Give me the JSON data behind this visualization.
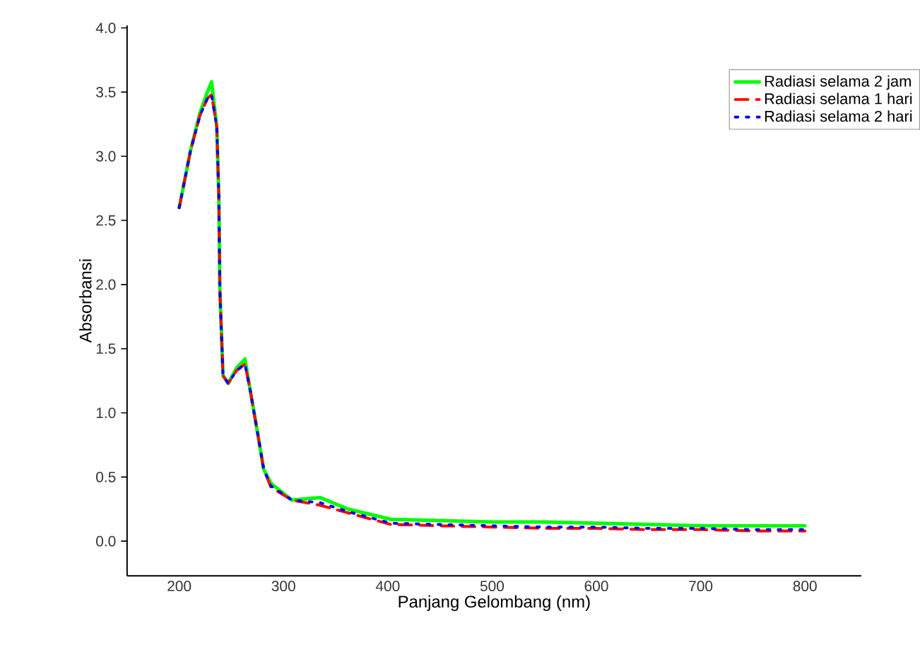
{
  "chart_data": {
    "type": "line",
    "xlabel": "Panjang Gelombang (nm)",
    "ylabel": "Absorbansi",
    "x": [
      200,
      211,
      220,
      227,
      231,
      236,
      238,
      239,
      242,
      247,
      255,
      263,
      268,
      275,
      281,
      288,
      308,
      335,
      362,
      403,
      450,
      500,
      550,
      600,
      650,
      700,
      750,
      800
    ],
    "series": [
      {
        "name": "Radiasi selama 2 jam",
        "color": "#00ff00",
        "line_style": "solid",
        "values": [
          2.6,
          3.05,
          3.34,
          3.5,
          3.58,
          3.23,
          2.68,
          1.95,
          1.29,
          1.23,
          1.35,
          1.42,
          1.18,
          0.85,
          0.56,
          0.45,
          0.32,
          0.34,
          0.25,
          0.17,
          0.16,
          0.15,
          0.15,
          0.14,
          0.13,
          0.12,
          0.12,
          0.12
        ]
      },
      {
        "name": "Radiasi selama 1 hari",
        "color": "#ff0000",
        "line_style": "dashed",
        "values": [
          2.6,
          3.05,
          3.32,
          3.45,
          3.48,
          3.23,
          2.68,
          1.95,
          1.29,
          1.23,
          1.33,
          1.38,
          1.18,
          0.85,
          0.56,
          0.42,
          0.32,
          0.28,
          0.22,
          0.13,
          0.12,
          0.11,
          0.1,
          0.1,
          0.09,
          0.09,
          0.08,
          0.08
        ]
      },
      {
        "name": "Radiasi selama 2 hari",
        "color": "#0000ff",
        "line_style": "dotted",
        "values": [
          2.6,
          3.05,
          3.32,
          3.45,
          3.48,
          3.23,
          2.68,
          1.95,
          1.29,
          1.23,
          1.33,
          1.38,
          1.18,
          0.85,
          0.56,
          0.43,
          0.32,
          0.3,
          0.23,
          0.14,
          0.13,
          0.12,
          0.11,
          0.11,
          0.1,
          0.1,
          0.09,
          0.09
        ]
      }
    ],
    "xlim": [
      150,
      854
    ],
    "ylim": [
      -0.27,
      4.02
    ],
    "xticks": [
      200,
      300,
      400,
      500,
      600,
      700,
      800
    ],
    "yticks": [
      {
        "value": 0,
        "label": "0.0"
      },
      {
        "value": 0.5,
        "label": "0.5"
      },
      {
        "value": 1,
        "label": "1.0"
      },
      {
        "value": 1.5,
        "label": "1.5"
      },
      {
        "value": 2,
        "label": "2.0"
      },
      {
        "value": 2.5,
        "label": "2.5"
      },
      {
        "value": 3,
        "label": "3.0"
      },
      {
        "value": 3.5,
        "label": "3.5"
      },
      {
        "value": 4,
        "label": "4.0"
      }
    ],
    "legend": "top right"
  }
}
